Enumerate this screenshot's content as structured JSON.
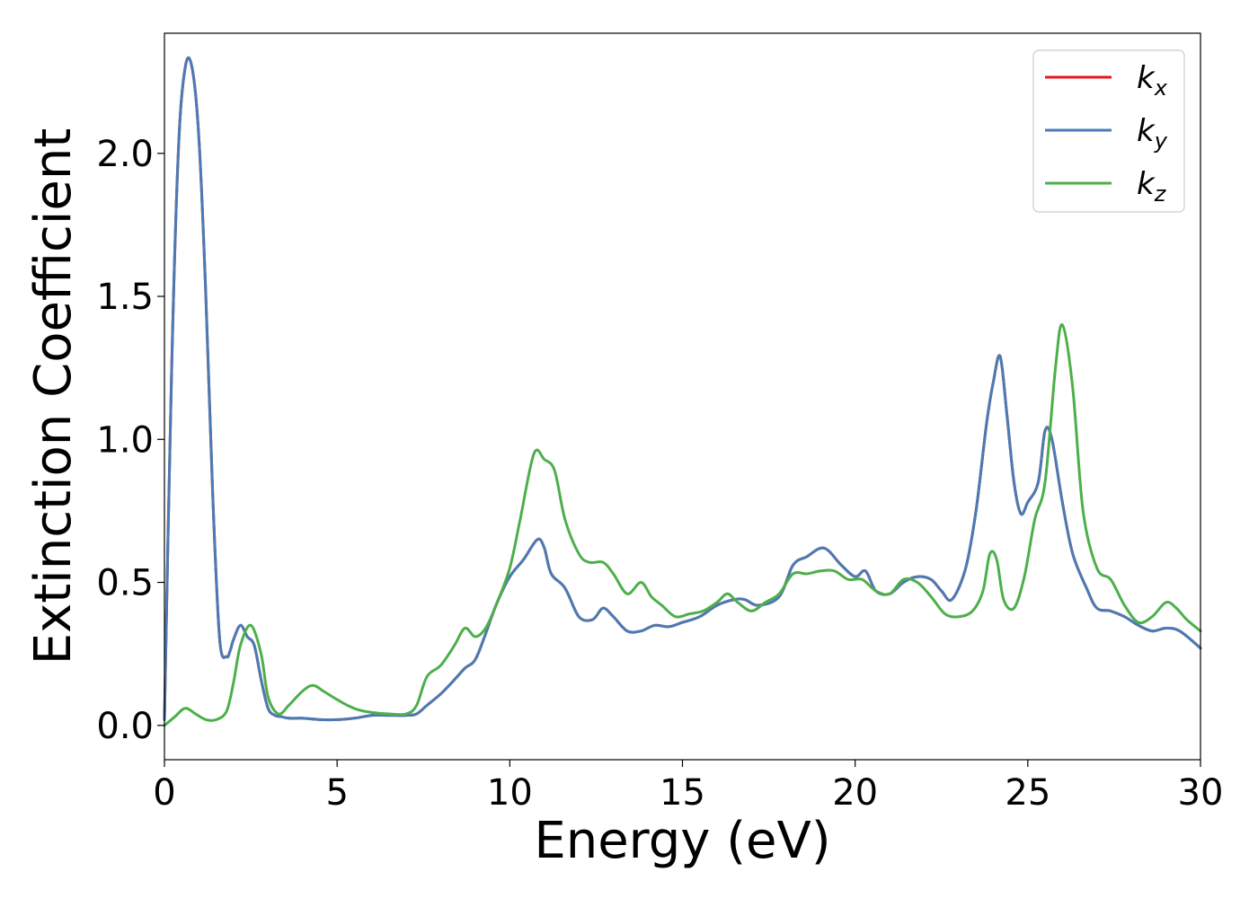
{
  "chart_data": {
    "type": "line",
    "title": "",
    "xlabel": "Energy (eV)",
    "ylabel": "Extinction Coefficient",
    "xlim": [
      0,
      30
    ],
    "ylim": [
      -0.12,
      2.42
    ],
    "xticks": [
      0,
      5,
      10,
      15,
      20,
      25,
      30
    ],
    "xtick_labels": [
      "0",
      "5",
      "10",
      "15",
      "20",
      "25",
      "30"
    ],
    "yticks": [
      0.0,
      0.5,
      1.0,
      1.5,
      2.0
    ],
    "ytick_labels": [
      "0.0",
      "0.5",
      "1.0",
      "1.5",
      "2.0"
    ],
    "grid": false,
    "legend_position": "top-right",
    "series": [
      {
        "name": "k_x",
        "label_main": "k",
        "label_sub": "x",
        "color": "#e41a1c",
        "x": [
          0,
          0.2,
          0.4,
          0.6,
          0.8,
          1.0,
          1.2,
          1.4,
          1.6,
          1.8,
          1.9,
          2.0,
          2.2,
          2.4,
          2.6,
          2.8,
          3.0,
          3.2,
          3.4,
          3.6,
          4.0,
          4.5,
          5.0,
          5.5,
          6.0,
          6.5,
          7.0,
          7.3,
          7.6,
          8.0,
          8.4,
          8.7,
          9.0,
          9.3,
          9.6,
          10.0,
          10.4,
          10.8,
          11.0,
          11.2,
          11.6,
          12.0,
          12.4,
          12.7,
          13.0,
          13.4,
          13.8,
          14.2,
          14.6,
          15.0,
          15.5,
          16.0,
          16.5,
          16.8,
          17.2,
          17.8,
          18.2,
          18.6,
          19.1,
          19.6,
          20.0,
          20.3,
          20.6,
          21.0,
          21.4,
          21.8,
          22.2,
          22.5,
          22.8,
          23.2,
          23.5,
          23.8,
          24.0,
          24.2,
          24.4,
          24.6,
          24.8,
          25.0,
          25.3,
          25.5,
          25.7,
          26.0,
          26.3,
          26.7,
          27.0,
          27.4,
          27.8,
          28.2,
          28.6,
          29.0,
          29.4,
          30.0
        ],
        "y": [
          0.02,
          1.2,
          2.0,
          2.3,
          2.3,
          2.05,
          1.5,
          0.8,
          0.3,
          0.24,
          0.26,
          0.3,
          0.35,
          0.31,
          0.28,
          0.16,
          0.06,
          0.035,
          0.03,
          0.025,
          0.025,
          0.02,
          0.02,
          0.025,
          0.035,
          0.035,
          0.035,
          0.04,
          0.07,
          0.11,
          0.16,
          0.2,
          0.23,
          0.32,
          0.42,
          0.52,
          0.58,
          0.65,
          0.62,
          0.53,
          0.48,
          0.38,
          0.37,
          0.41,
          0.38,
          0.33,
          0.33,
          0.35,
          0.345,
          0.36,
          0.38,
          0.42,
          0.44,
          0.44,
          0.42,
          0.45,
          0.56,
          0.59,
          0.62,
          0.56,
          0.52,
          0.54,
          0.47,
          0.46,
          0.5,
          0.52,
          0.51,
          0.47,
          0.44,
          0.55,
          0.75,
          1.05,
          1.2,
          1.29,
          1.08,
          0.85,
          0.74,
          0.78,
          0.85,
          1.03,
          1.0,
          0.78,
          0.6,
          0.48,
          0.41,
          0.4,
          0.38,
          0.35,
          0.33,
          0.34,
          0.33,
          0.27
        ]
      },
      {
        "name": "k_y",
        "label_main": "k",
        "label_sub": "y",
        "color": "#4a7bb5",
        "x": [
          0,
          0.2,
          0.4,
          0.6,
          0.8,
          1.0,
          1.2,
          1.4,
          1.6,
          1.8,
          1.9,
          2.0,
          2.2,
          2.4,
          2.6,
          2.8,
          3.0,
          3.2,
          3.4,
          3.6,
          4.0,
          4.5,
          5.0,
          5.5,
          6.0,
          6.5,
          7.0,
          7.3,
          7.6,
          8.0,
          8.4,
          8.7,
          9.0,
          9.3,
          9.6,
          10.0,
          10.4,
          10.8,
          11.0,
          11.2,
          11.6,
          12.0,
          12.4,
          12.7,
          13.0,
          13.4,
          13.8,
          14.2,
          14.6,
          15.0,
          15.5,
          16.0,
          16.5,
          16.8,
          17.2,
          17.8,
          18.2,
          18.6,
          19.1,
          19.6,
          20.0,
          20.3,
          20.6,
          21.0,
          21.4,
          21.8,
          22.2,
          22.5,
          22.8,
          23.2,
          23.5,
          23.8,
          24.0,
          24.2,
          24.4,
          24.6,
          24.8,
          25.0,
          25.3,
          25.5,
          25.7,
          26.0,
          26.3,
          26.7,
          27.0,
          27.4,
          27.8,
          28.2,
          28.6,
          29.0,
          29.4,
          30.0
        ],
        "y": [
          0.02,
          1.2,
          2.0,
          2.3,
          2.3,
          2.05,
          1.5,
          0.8,
          0.3,
          0.24,
          0.26,
          0.3,
          0.35,
          0.31,
          0.28,
          0.16,
          0.06,
          0.035,
          0.03,
          0.025,
          0.025,
          0.02,
          0.02,
          0.025,
          0.035,
          0.035,
          0.035,
          0.04,
          0.07,
          0.11,
          0.16,
          0.2,
          0.23,
          0.32,
          0.42,
          0.52,
          0.58,
          0.65,
          0.62,
          0.53,
          0.48,
          0.38,
          0.37,
          0.41,
          0.38,
          0.33,
          0.33,
          0.35,
          0.345,
          0.36,
          0.38,
          0.42,
          0.44,
          0.44,
          0.42,
          0.45,
          0.56,
          0.59,
          0.62,
          0.56,
          0.52,
          0.54,
          0.47,
          0.46,
          0.5,
          0.52,
          0.51,
          0.47,
          0.44,
          0.55,
          0.75,
          1.05,
          1.2,
          1.29,
          1.08,
          0.85,
          0.74,
          0.78,
          0.85,
          1.03,
          1.0,
          0.78,
          0.6,
          0.48,
          0.41,
          0.4,
          0.38,
          0.35,
          0.33,
          0.34,
          0.33,
          0.27
        ]
      },
      {
        "name": "k_z",
        "label_main": "k",
        "label_sub": "z",
        "color": "#4daf4a",
        "x": [
          0,
          0.3,
          0.6,
          0.9,
          1.2,
          1.5,
          1.8,
          2.0,
          2.2,
          2.5,
          2.8,
          3.0,
          3.3,
          3.6,
          4.0,
          4.3,
          4.6,
          5.0,
          5.3,
          5.6,
          6.0,
          6.5,
          7.0,
          7.3,
          7.6,
          8.0,
          8.4,
          8.7,
          9.0,
          9.3,
          9.6,
          10.0,
          10.3,
          10.7,
          11.0,
          11.3,
          11.6,
          12.0,
          12.3,
          12.7,
          13.0,
          13.4,
          13.8,
          14.1,
          14.4,
          14.8,
          15.2,
          15.6,
          16.0,
          16.3,
          16.6,
          17.0,
          17.4,
          17.8,
          18.2,
          18.6,
          19.0,
          19.4,
          19.8,
          20.2,
          20.6,
          21.0,
          21.4,
          21.8,
          22.2,
          22.6,
          23.0,
          23.4,
          23.7,
          23.9,
          24.1,
          24.3,
          24.6,
          24.9,
          25.2,
          25.5,
          25.8,
          26.0,
          26.3,
          26.6,
          27.0,
          27.4,
          27.8,
          28.2,
          28.6,
          29.0,
          29.3,
          29.6,
          30.0
        ],
        "y": [
          0.0,
          0.03,
          0.06,
          0.04,
          0.02,
          0.02,
          0.05,
          0.15,
          0.28,
          0.35,
          0.25,
          0.1,
          0.04,
          0.07,
          0.12,
          0.14,
          0.12,
          0.09,
          0.07,
          0.055,
          0.045,
          0.04,
          0.04,
          0.07,
          0.17,
          0.21,
          0.28,
          0.34,
          0.31,
          0.34,
          0.42,
          0.55,
          0.72,
          0.95,
          0.93,
          0.89,
          0.72,
          0.6,
          0.57,
          0.57,
          0.53,
          0.46,
          0.5,
          0.45,
          0.42,
          0.38,
          0.39,
          0.4,
          0.43,
          0.46,
          0.43,
          0.4,
          0.43,
          0.46,
          0.53,
          0.53,
          0.54,
          0.54,
          0.51,
          0.51,
          0.47,
          0.46,
          0.51,
          0.5,
          0.45,
          0.39,
          0.38,
          0.4,
          0.47,
          0.6,
          0.58,
          0.44,
          0.41,
          0.52,
          0.72,
          0.85,
          1.25,
          1.4,
          1.18,
          0.75,
          0.55,
          0.51,
          0.42,
          0.36,
          0.38,
          0.43,
          0.41,
          0.37,
          0.33
        ]
      }
    ]
  }
}
